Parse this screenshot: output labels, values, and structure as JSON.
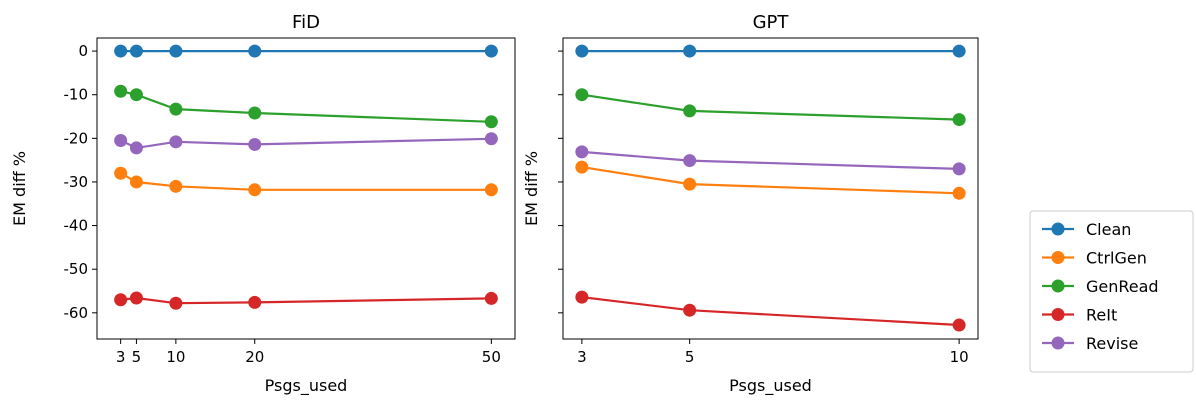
{
  "colors": {
    "Clean": "#1f77b4",
    "CtrlGen": "#ff7f0e",
    "GenRead": "#2ca02c",
    "ReIt": "#d62728",
    "Revise": "#9467bd"
  },
  "legend": [
    "Clean",
    "CtrlGen",
    "GenRead",
    "ReIt",
    "Revise"
  ],
  "chart_data": [
    {
      "type": "line",
      "title": "FiD",
      "xlabel": "Psgs_used",
      "ylabel": "EM diff %",
      "x": [
        3,
        5,
        10,
        20,
        50
      ],
      "xticks": [
        3,
        5,
        10,
        20,
        50
      ],
      "yticks": [
        0,
        -10,
        -20,
        -30,
        -40,
        -50,
        -60
      ],
      "xlim": [
        0,
        53
      ],
      "ylim": [
        -66,
        3
      ],
      "series": [
        {
          "name": "Clean",
          "values": [
            0,
            0,
            0,
            0,
            0
          ]
        },
        {
          "name": "CtrlGen",
          "values": [
            -28,
            -30,
            -31,
            -31.8,
            -31.8
          ]
        },
        {
          "name": "GenRead",
          "values": [
            -9.2,
            -10,
            -13.3,
            -14.2,
            -16.2
          ]
        },
        {
          "name": "ReIt",
          "values": [
            -57,
            -56.6,
            -57.8,
            -57.6,
            -56.7
          ]
        },
        {
          "name": "Revise",
          "values": [
            -20.5,
            -22.2,
            -20.8,
            -21.4,
            -20.1
          ]
        }
      ]
    },
    {
      "type": "line",
      "title": "GPT",
      "xlabel": "Psgs_used",
      "ylabel": "EM diff %",
      "x": [
        3,
        5,
        10
      ],
      "xticks": [
        3,
        5,
        10
      ],
      "yticks": [
        0,
        -10,
        -20,
        -30,
        -40,
        -50,
        -60
      ],
      "xlim": [
        2.65,
        10.35
      ],
      "ylim": [
        -66,
        3
      ],
      "series": [
        {
          "name": "Clean",
          "values": [
            0,
            0,
            0
          ]
        },
        {
          "name": "CtrlGen",
          "values": [
            -26.6,
            -30.5,
            -32.6
          ]
        },
        {
          "name": "GenRead",
          "values": [
            -10,
            -13.7,
            -15.7
          ]
        },
        {
          "name": "ReIt",
          "values": [
            -56.4,
            -59.4,
            -62.8
          ]
        },
        {
          "name": "Revise",
          "values": [
            -23.1,
            -25.1,
            -27
          ]
        }
      ]
    }
  ]
}
